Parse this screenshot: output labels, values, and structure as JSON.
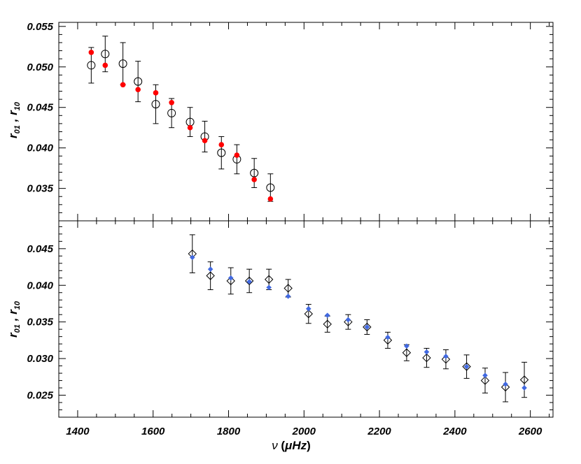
{
  "chart_data": [
    {
      "type": "scatter",
      "panel": "top",
      "ylabel": {
        "r": "r",
        "sub1": "01",
        "sep": " , ",
        "sub2": "10"
      },
      "ylim": [
        0.031,
        0.0555
      ],
      "yticks": [
        0.035,
        0.04,
        0.045,
        0.05,
        0.055
      ],
      "ytick_labels": [
        "0.035",
        "0.040",
        "0.045",
        "0.050",
        "0.055"
      ],
      "series": [
        {
          "marker": "open-circle-errorbar",
          "color": "#000000",
          "points": [
            {
              "x": 1436,
              "y": 0.0502,
              "err": 0.0022
            },
            {
              "x": 1473,
              "y": 0.0516,
              "err": 0.0022
            },
            {
              "x": 1520,
              "y": 0.0504,
              "err": 0.0026
            },
            {
              "x": 1560,
              "y": 0.0482,
              "err": 0.0025
            },
            {
              "x": 1607,
              "y": 0.0454,
              "err": 0.0024
            },
            {
              "x": 1649,
              "y": 0.0443,
              "err": 0.0018
            },
            {
              "x": 1698,
              "y": 0.0432,
              "err": 0.0018
            },
            {
              "x": 1737,
              "y": 0.0414,
              "err": 0.0019
            },
            {
              "x": 1781,
              "y": 0.0394,
              "err": 0.002
            },
            {
              "x": 1822,
              "y": 0.0386,
              "err": 0.0018
            },
            {
              "x": 1868,
              "y": 0.0369,
              "err": 0.0018
            },
            {
              "x": 1911,
              "y": 0.0351,
              "err": 0.0017
            }
          ]
        },
        {
          "marker": "filled-circle",
          "color": "#ff0000",
          "points": [
            {
              "x": 1436,
              "y": 0.0518
            },
            {
              "x": 1473,
              "y": 0.0502
            },
            {
              "x": 1520,
              "y": 0.0478
            },
            {
              "x": 1560,
              "y": 0.0472
            },
            {
              "x": 1607,
              "y": 0.0468
            },
            {
              "x": 1649,
              "y": 0.0456
            },
            {
              "x": 1698,
              "y": 0.0425
            },
            {
              "x": 1737,
              "y": 0.0409
            },
            {
              "x": 1781,
              "y": 0.0404
            },
            {
              "x": 1822,
              "y": 0.0391
            },
            {
              "x": 1868,
              "y": 0.0361
            },
            {
              "x": 1911,
              "y": 0.0337
            }
          ]
        }
      ]
    },
    {
      "type": "scatter",
      "panel": "bottom",
      "ylabel": {
        "r": "r",
        "sub1": "01",
        "sep": " , ",
        "sub2": "10"
      },
      "ylim": [
        0.022,
        0.0488
      ],
      "yticks": [
        0.025,
        0.03,
        0.035,
        0.04,
        0.045
      ],
      "ytick_labels": [
        "0.025",
        "0.030",
        "0.035",
        "0.040",
        "0.045"
      ],
      "series": [
        {
          "marker": "open-diamond-errorbar",
          "color": "#000000",
          "points": [
            {
              "x": 1704,
              "y": 0.0443,
              "err": 0.0026
            },
            {
              "x": 1752,
              "y": 0.0413,
              "err": 0.0019
            },
            {
              "x": 1806,
              "y": 0.0406,
              "err": 0.0018
            },
            {
              "x": 1855,
              "y": 0.0406,
              "err": 0.0016
            },
            {
              "x": 1907,
              "y": 0.0408,
              "err": 0.0014
            },
            {
              "x": 1958,
              "y": 0.0396,
              "err": 0.0012
            },
            {
              "x": 2012,
              "y": 0.0361,
              "err": 0.0013
            },
            {
              "x": 2062,
              "y": 0.0347,
              "err": 0.0011
            },
            {
              "x": 2117,
              "y": 0.035,
              "err": 0.001
            },
            {
              "x": 2167,
              "y": 0.0343,
              "err": 0.001
            },
            {
              "x": 2222,
              "y": 0.0325,
              "err": 0.0011
            },
            {
              "x": 2272,
              "y": 0.0308,
              "err": 0.0011
            },
            {
              "x": 2325,
              "y": 0.0301,
              "err": 0.0013
            },
            {
              "x": 2376,
              "y": 0.0299,
              "err": 0.0013
            },
            {
              "x": 2431,
              "y": 0.0289,
              "err": 0.0016
            },
            {
              "x": 2480,
              "y": 0.027,
              "err": 0.0017
            },
            {
              "x": 2534,
              "y": 0.0261,
              "err": 0.002
            },
            {
              "x": 2584,
              "y": 0.0271,
              "err": 0.0024
            }
          ]
        },
        {
          "marker": "filled-diamond",
          "color": "#4169e1",
          "points": [
            {
              "x": 1704,
              "y": 0.0438
            },
            {
              "x": 1752,
              "y": 0.0422
            },
            {
              "x": 1806,
              "y": 0.041
            },
            {
              "x": 1855,
              "y": 0.0405
            },
            {
              "x": 1907,
              "y": 0.0397
            },
            {
              "x": 1958,
              "y": 0.0385
            },
            {
              "x": 2012,
              "y": 0.0368
            },
            {
              "x": 2062,
              "y": 0.0359
            },
            {
              "x": 2117,
              "y": 0.0353
            },
            {
              "x": 2167,
              "y": 0.0343
            },
            {
              "x": 2222,
              "y": 0.0329
            },
            {
              "x": 2272,
              "y": 0.0317
            },
            {
              "x": 2325,
              "y": 0.0309
            },
            {
              "x": 2376,
              "y": 0.0303
            },
            {
              "x": 2431,
              "y": 0.0289
            },
            {
              "x": 2480,
              "y": 0.0277
            },
            {
              "x": 2534,
              "y": 0.0265
            },
            {
              "x": 2584,
              "y": 0.026
            }
          ]
        }
      ]
    }
  ],
  "x_axis": {
    "xlim": [
      1350,
      2660
    ],
    "xticks": [
      1400,
      1600,
      1800,
      2000,
      2200,
      2400,
      2600
    ],
    "xtick_labels": [
      "1400",
      "1600",
      "1800",
      "2000",
      "2200",
      "2400",
      "2600"
    ],
    "xlabel": {
      "nu": "ν",
      "open": " (",
      "mu": "μ",
      "unit": "Hz",
      "close": ")"
    }
  },
  "grid": false,
  "legend": "none"
}
